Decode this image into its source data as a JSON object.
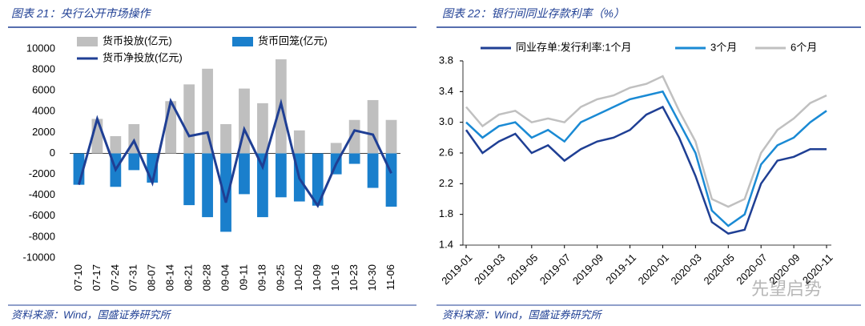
{
  "chart_data": [
    {
      "type": "bar",
      "title": "图表 21：央行公开市场操作",
      "source": "资料来源：Wind，国盛证券研究所",
      "categories": [
        "07-10",
        "07-17",
        "07-24",
        "07-31",
        "08-07",
        "08-14",
        "08-21",
        "08-28",
        "09-04",
        "09-11",
        "09-18",
        "09-25",
        "10-02",
        "10-09",
        "10-16",
        "10-23",
        "10-30",
        "11-06"
      ],
      "series": [
        {
          "name": "货币投放(亿元)",
          "type": "bar",
          "color": "#bfbfbf",
          "values": [
            0,
            3300,
            1650,
            2800,
            0,
            5000,
            6600,
            8100,
            2800,
            6200,
            4800,
            9000,
            2200,
            0,
            1000,
            3200,
            5100,
            3200
          ]
        },
        {
          "name": "货币回笼(亿元)",
          "type": "bar",
          "color": "#1a7fcc",
          "values": [
            -3000,
            0,
            -3200,
            -1600,
            -2800,
            0,
            -4950,
            -6100,
            -7500,
            -3900,
            -6100,
            -4200,
            -4600,
            -5000,
            -2000,
            -1000,
            -3300,
            -5100
          ]
        },
        {
          "name": "货币净投放(亿元)",
          "type": "line",
          "color": "#1f3f94",
          "values": [
            -3000,
            3300,
            -1550,
            1200,
            -2800,
            5000,
            1650,
            2000,
            -4700,
            2300,
            -1300,
            4800,
            -2400,
            -5000,
            -1000,
            2200,
            1800,
            -1900
          ]
        }
      ],
      "ylim": [
        -10000,
        10000
      ],
      "yticks": [
        10000,
        8000,
        6000,
        4000,
        2000,
        0,
        -2000,
        -4000,
        -6000,
        -8000,
        -10000
      ]
    },
    {
      "type": "line",
      "title": "图表 22：银行间同业存款利率（%）",
      "source": "资料来源：Wind，国盛证券研究所",
      "x": [
        "2019-01",
        "2019-02",
        "2019-03",
        "2019-04",
        "2019-05",
        "2019-06",
        "2019-07",
        "2019-08",
        "2019-09",
        "2019-10",
        "2019-11",
        "2019-12",
        "2020-01",
        "2020-02",
        "2020-03",
        "2020-04",
        "2020-05",
        "2020-06",
        "2020-07",
        "2020-08",
        "2020-09",
        "2020-10",
        "2020-11"
      ],
      "xticks": [
        "2019-01",
        "2019-03",
        "2019-05",
        "2019-07",
        "2019-09",
        "2019-11",
        "2020-01",
        "2020-03",
        "2020-05",
        "2020-07",
        "2020-09",
        "2020-11"
      ],
      "series": [
        {
          "name": "同业存单:发行利率:1个月",
          "color": "#1f3f94",
          "values": [
            2.9,
            2.6,
            2.75,
            2.85,
            2.6,
            2.7,
            2.5,
            2.65,
            2.75,
            2.8,
            2.9,
            3.1,
            3.2,
            2.8,
            2.3,
            1.7,
            1.55,
            1.6,
            2.2,
            2.5,
            2.55,
            2.65,
            2.65
          ]
        },
        {
          "name": "3个月",
          "color": "#1a8ad4",
          "values": [
            3.0,
            2.8,
            2.95,
            3.0,
            2.8,
            2.9,
            2.75,
            3.0,
            3.1,
            3.2,
            3.3,
            3.35,
            3.4,
            3.0,
            2.6,
            1.85,
            1.65,
            1.8,
            2.45,
            2.7,
            2.8,
            3.0,
            3.15
          ]
        },
        {
          "name": "6个月",
          "color": "#c0c0c0",
          "values": [
            3.2,
            2.95,
            3.1,
            3.15,
            3.0,
            3.05,
            3.0,
            3.2,
            3.3,
            3.35,
            3.45,
            3.5,
            3.6,
            3.15,
            2.75,
            2.0,
            1.9,
            2.0,
            2.6,
            2.9,
            3.05,
            3.25,
            3.35
          ]
        }
      ],
      "ylim": [
        1.4,
        3.8
      ],
      "yticks": [
        1.4,
        1.8,
        2.2,
        2.6,
        {
          "value": 3,
          "label": "3.0"
        },
        3.4,
        3.8
      ]
    }
  ],
  "watermark": "先望启势"
}
